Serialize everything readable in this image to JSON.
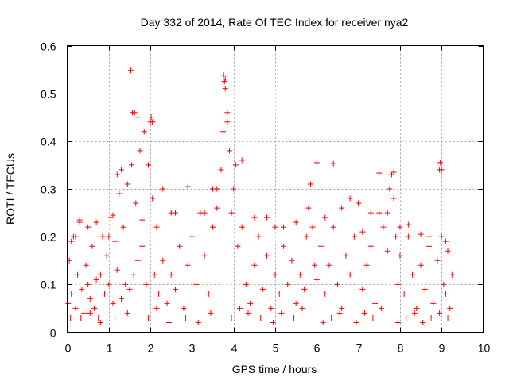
{
  "chart_data": {
    "type": "scatter",
    "title": "Day 332 of 2014, Rate Of TEC Index for receiver nya2",
    "xlabel": "GPS time / hours",
    "ylabel": "ROTI / TECUs",
    "xlim": [
      0,
      10
    ],
    "ylim": [
      0,
      0.6
    ],
    "x_ticks": [
      "0",
      "1",
      "2",
      "3",
      "4",
      "5",
      "6",
      "7",
      "8",
      "9",
      "10"
    ],
    "y_ticks": [
      "0",
      "0.1",
      "0.2",
      "0.3",
      "0.4",
      "0.5",
      "0.6"
    ],
    "grid": true,
    "marker": "+",
    "series": [
      {
        "name": "ROTI",
        "color": "#ff0000",
        "x": [
          0.02,
          0.05,
          0.1,
          0.15,
          0.2,
          0.25,
          0.3,
          0.35,
          0.4,
          0.45,
          0.5,
          0.55,
          0.6,
          0.65,
          0.7,
          0.75,
          0.8,
          0.85,
          0.9,
          0.95,
          1.0,
          1.05,
          1.1,
          1.15,
          1.2,
          1.25,
          1.3,
          1.35,
          1.4,
          1.45,
          1.5,
          1.55,
          1.6,
          1.65,
          1.7,
          1.75,
          1.8,
          1.85,
          1.9,
          1.95,
          2.0,
          2.05,
          2.1,
          2.15,
          2.2,
          2.3,
          2.4,
          2.5,
          2.6,
          2.7,
          2.8,
          2.9,
          3.0,
          3.1,
          3.2,
          3.3,
          3.4,
          3.5,
          3.6,
          3.7,
          3.75,
          3.8,
          3.85,
          3.9,
          3.95,
          4.0,
          4.05,
          4.1,
          4.2,
          4.3,
          4.4,
          4.5,
          4.6,
          4.7,
          4.8,
          4.9,
          5.0,
          5.1,
          5.2,
          5.3,
          5.4,
          5.5,
          5.6,
          5.7,
          5.75,
          5.8,
          5.85,
          5.9,
          5.95,
          6.0,
          6.1,
          6.2,
          6.3,
          6.4,
          6.5,
          6.6,
          6.7,
          6.8,
          6.9,
          7.0,
          7.1,
          7.2,
          7.3,
          7.4,
          7.5,
          7.6,
          7.7,
          7.75,
          7.8,
          7.85,
          7.9,
          7.95,
          8.0,
          8.1,
          8.2,
          8.3,
          8.4,
          8.5,
          8.6,
          8.7,
          8.8,
          8.9,
          8.95,
          9.0,
          9.05,
          9.1,
          9.15,
          9.2,
          9.25,
          1.53,
          1.57,
          3.76,
          3.78,
          3.8,
          3.85,
          1.62,
          1.7,
          2.02,
          2.05,
          1.2,
          1.3,
          6.0,
          6.4,
          7.5,
          7.85,
          8.97,
          9.0,
          4.2,
          3.5,
          2.9,
          0.3,
          0.1,
          0.2,
          1.0,
          1.1,
          2.5,
          2.6,
          4.8,
          5.0,
          5.5,
          6.8,
          8.2,
          8.5,
          9.1,
          0.5,
          0.7,
          1.8,
          2.3,
          3.3,
          3.6,
          4.5,
          5.2,
          6.2,
          6.6,
          7.1,
          7.3,
          7.7,
          8.0,
          8.7,
          0.08,
          0.33,
          0.55,
          0.8,
          1.15,
          1.45,
          1.95,
          2.15,
          2.45,
          2.85,
          3.15,
          3.45,
          3.95,
          4.15,
          4.35,
          4.65,
          4.95,
          5.15,
          5.45,
          5.65,
          6.15,
          6.35,
          6.55,
          6.75,
          6.95,
          7.15,
          7.35,
          7.55,
          7.95,
          8.15,
          8.35,
          8.55,
          8.75,
          8.95,
          9.15
        ],
        "y": [
          0.06,
          0.15,
          0.08,
          0.2,
          0.05,
          0.12,
          0.23,
          0.09,
          0.04,
          0.14,
          0.1,
          0.07,
          0.18,
          0.05,
          0.11,
          0.03,
          0.12,
          0.2,
          0.08,
          0.16,
          0.1,
          0.24,
          0.06,
          0.19,
          0.13,
          0.29,
          0.07,
          0.22,
          0.1,
          0.31,
          0.09,
          0.35,
          0.12,
          0.27,
          0.15,
          0.38,
          0.18,
          0.42,
          0.1,
          0.35,
          0.44,
          0.28,
          0.12,
          0.22,
          0.08,
          0.15,
          0.06,
          0.12,
          0.09,
          0.18,
          0.05,
          0.14,
          0.2,
          0.1,
          0.25,
          0.16,
          0.08,
          0.22,
          0.26,
          0.34,
          0.42,
          0.53,
          0.46,
          0.38,
          0.25,
          0.3,
          0.35,
          0.18,
          0.22,
          0.1,
          0.06,
          0.14,
          0.2,
          0.09,
          0.16,
          0.05,
          0.12,
          0.08,
          0.18,
          0.1,
          0.15,
          0.06,
          0.12,
          0.09,
          0.2,
          0.26,
          0.31,
          0.22,
          0.14,
          0.11,
          0.18,
          0.08,
          0.14,
          0.22,
          0.1,
          0.05,
          0.16,
          0.12,
          0.2,
          0.27,
          0.09,
          0.14,
          0.18,
          0.06,
          0.25,
          0.22,
          0.17,
          0.3,
          0.33,
          0.28,
          0.2,
          0.1,
          0.16,
          0.08,
          0.2,
          0.12,
          0.05,
          0.14,
          0.09,
          0.18,
          0.06,
          0.15,
          0.34,
          0.2,
          0.1,
          0.08,
          0.17,
          0.05,
          0.12,
          0.548,
          0.46,
          0.538,
          0.525,
          0.51,
          0.44,
          0.46,
          0.45,
          0.45,
          0.44,
          0.33,
          0.34,
          0.355,
          0.353,
          0.333,
          0.335,
          0.355,
          0.34,
          0.36,
          0.3,
          0.305,
          0.235,
          0.19,
          0.2,
          0.2,
          0.245,
          0.25,
          0.25,
          0.24,
          0.22,
          0.23,
          0.28,
          0.225,
          0.205,
          0.19,
          0.22,
          0.23,
          0.235,
          0.3,
          0.25,
          0.3,
          0.24,
          0.22,
          0.24,
          0.26,
          0.21,
          0.25,
          0.25,
          0.22,
          0.2,
          0.03,
          0.03,
          0.04,
          0.02,
          0.03,
          0.04,
          0.03,
          0.05,
          0.02,
          0.03,
          0.02,
          0.04,
          0.03,
          0.05,
          0.04,
          0.03,
          0.02,
          0.04,
          0.03,
          0.05,
          0.02,
          0.03,
          0.04,
          0.03,
          0.02,
          0.04,
          0.03,
          0.05,
          0.02,
          0.03,
          0.04,
          0.02,
          0.03,
          0.04,
          0.03
        ]
      }
    ]
  }
}
